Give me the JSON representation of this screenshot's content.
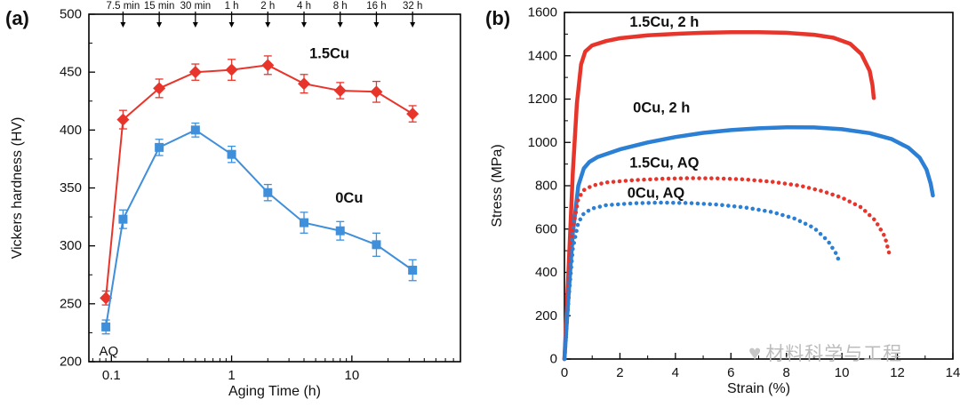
{
  "figure": {
    "background": "#ffffff"
  },
  "watermark": {
    "hearts": "♥",
    "text": "材料科学与工程",
    "color": "#bcbcbc"
  },
  "colors": {
    "red": "#e8352c",
    "blue_markers": "#3f8fdb",
    "blue_curves": "#2b7fd4"
  },
  "chart_data": [
    {
      "id": "a",
      "type": "line",
      "panel_label": "(a)",
      "xlabel": "Aging Time (h)",
      "ylabel": "Vickers hardness (HV)",
      "x_scale": "log",
      "xlim": [
        0.065,
        80
      ],
      "ylim": [
        200,
        500
      ],
      "xticks": [
        0.1,
        1,
        10
      ],
      "yticks": [
        200,
        250,
        300,
        350,
        400,
        450,
        500
      ],
      "yminor_step": 25,
      "grid": false,
      "legend": "labels-on-plot",
      "top_annotations": [
        {
          "label": "7.5 min",
          "x": 0.125
        },
        {
          "label": "15 min",
          "x": 0.25
        },
        {
          "label": "30 min",
          "x": 0.5
        },
        {
          "label": "1 h",
          "x": 1
        },
        {
          "label": "2 h",
          "x": 2
        },
        {
          "label": "4 h",
          "x": 4
        },
        {
          "label": "8 h",
          "x": 8
        },
        {
          "label": "16 h",
          "x": 16
        },
        {
          "label": "32 h",
          "x": 32
        }
      ],
      "annotations": [
        {
          "label": "AQ",
          "x": 0.095,
          "y": 209,
          "color": "#000000"
        }
      ],
      "series": [
        {
          "name": "1.5Cu",
          "color": "#e8352c",
          "marker": "diamond",
          "line_width": 2,
          "label": {
            "text": "1.5Cu",
            "x": 6.5,
            "y": 466
          },
          "x": [
            0.09,
            0.125,
            0.25,
            0.5,
            1,
            2,
            4,
            8,
            16,
            32
          ],
          "y": [
            255,
            409,
            436,
            450,
            452,
            456,
            440,
            434,
            433,
            414
          ],
          "yerr": [
            6,
            8,
            8,
            7,
            9,
            8,
            8,
            7,
            9,
            7
          ]
        },
        {
          "name": "0Cu",
          "color": "#3f8fdb",
          "marker": "square",
          "line_width": 2,
          "label": {
            "text": "0Cu",
            "x": 9.5,
            "y": 341
          },
          "x": [
            0.09,
            0.125,
            0.25,
            0.5,
            1,
            2,
            4,
            8,
            16,
            32
          ],
          "y": [
            230,
            323,
            385,
            400,
            379,
            346,
            320,
            313,
            301,
            279
          ],
          "yerr": [
            6,
            8,
            7,
            6,
            7,
            7,
            9,
            8,
            10,
            9
          ]
        }
      ]
    },
    {
      "id": "b",
      "type": "line",
      "panel_label": "(b)",
      "xlabel": "Strain (%)",
      "ylabel": "Stress (MPa)",
      "x_scale": "linear",
      "xlim": [
        0,
        14
      ],
      "ylim": [
        0,
        1600
      ],
      "xticks": [
        0,
        2,
        4,
        6,
        8,
        10,
        12,
        14
      ],
      "yticks": [
        0,
        200,
        400,
        600,
        800,
        1000,
        1200,
        1400,
        1600
      ],
      "xminor_step": 1,
      "yminor_step": 100,
      "grid": false,
      "legend": "labels-on-plot",
      "series": [
        {
          "name": "1.5Cu, 2 h",
          "color": "#e8352c",
          "style": "solid",
          "line_width": 4.5,
          "label": {
            "text": "1.5Cu, 2 h",
            "x": 3.6,
            "y": 1555
          },
          "points": [
            [
              0,
              0
            ],
            [
              0.15,
              420
            ],
            [
              0.3,
              860
            ],
            [
              0.45,
              1180
            ],
            [
              0.6,
              1360
            ],
            [
              0.75,
              1420
            ],
            [
              1.0,
              1448
            ],
            [
              1.5,
              1468
            ],
            [
              2,
              1481
            ],
            [
              3,
              1494
            ],
            [
              4,
              1501
            ],
            [
              5,
              1506
            ],
            [
              6,
              1509
            ],
            [
              7,
              1509
            ],
            [
              8,
              1506
            ],
            [
              9,
              1497
            ],
            [
              9.7,
              1483
            ],
            [
              10.3,
              1455
            ],
            [
              10.7,
              1408
            ],
            [
              11.0,
              1330
            ],
            [
              11.1,
              1265
            ],
            [
              11.15,
              1205
            ]
          ]
        },
        {
          "name": "0Cu, 2 h",
          "color": "#2b7fd4",
          "style": "solid",
          "line_width": 4.5,
          "label": {
            "text": "0Cu, 2 h",
            "x": 3.5,
            "y": 1160
          },
          "points": [
            [
              0,
              0
            ],
            [
              0.15,
              300
            ],
            [
              0.3,
              580
            ],
            [
              0.5,
              800
            ],
            [
              0.7,
              880
            ],
            [
              0.9,
              910
            ],
            [
              1.2,
              933
            ],
            [
              2,
              968
            ],
            [
              3,
              1000
            ],
            [
              4,
              1025
            ],
            [
              5,
              1044
            ],
            [
              6,
              1057
            ],
            [
              7,
              1065
            ],
            [
              8,
              1070
            ],
            [
              9,
              1069
            ],
            [
              10,
              1061
            ],
            [
              11,
              1043
            ],
            [
              11.8,
              1015
            ],
            [
              12.4,
              975
            ],
            [
              12.8,
              930
            ],
            [
              13.05,
              875
            ],
            [
              13.2,
              810
            ],
            [
              13.28,
              755
            ]
          ]
        },
        {
          "name": "1.5Cu, AQ",
          "color": "#e8352c",
          "style": "dotted",
          "line_width": 4.5,
          "label": {
            "text": "1.5Cu, AQ",
            "x": 3.6,
            "y": 905
          },
          "points": [
            [
              0,
              0
            ],
            [
              0.15,
              330
            ],
            [
              0.3,
              600
            ],
            [
              0.5,
              740
            ],
            [
              0.7,
              780
            ],
            [
              1.0,
              800
            ],
            [
              1.5,
              815
            ],
            [
              2.5,
              826
            ],
            [
              3.5,
              832
            ],
            [
              4.5,
              835
            ],
            [
              5.5,
              834
            ],
            [
              6.5,
              829
            ],
            [
              7.5,
              818
            ],
            [
              8.5,
              800
            ],
            [
              9.3,
              775
            ],
            [
              10.0,
              745
            ],
            [
              10.7,
              700
            ],
            [
              11.2,
              640
            ],
            [
              11.55,
              565
            ],
            [
              11.7,
              490
            ]
          ]
        },
        {
          "name": "0Cu, AQ",
          "color": "#2b7fd4",
          "style": "dotted",
          "line_width": 4.5,
          "label": {
            "text": "0Cu, AQ",
            "x": 3.3,
            "y": 765
          },
          "points": [
            [
              0,
              0
            ],
            [
              0.15,
              280
            ],
            [
              0.3,
              510
            ],
            [
              0.5,
              630
            ],
            [
              0.7,
              672
            ],
            [
              1.0,
              695
            ],
            [
              1.5,
              710
            ],
            [
              2.5,
              719
            ],
            [
              3.5,
              722
            ],
            [
              4.5,
              720
            ],
            [
              5.5,
              713
            ],
            [
              6.5,
              700
            ],
            [
              7.5,
              678
            ],
            [
              8.3,
              648
            ],
            [
              9.0,
              605
            ],
            [
              9.5,
              545
            ],
            [
              9.8,
              485
            ],
            [
              9.92,
              445
            ]
          ]
        }
      ]
    }
  ]
}
